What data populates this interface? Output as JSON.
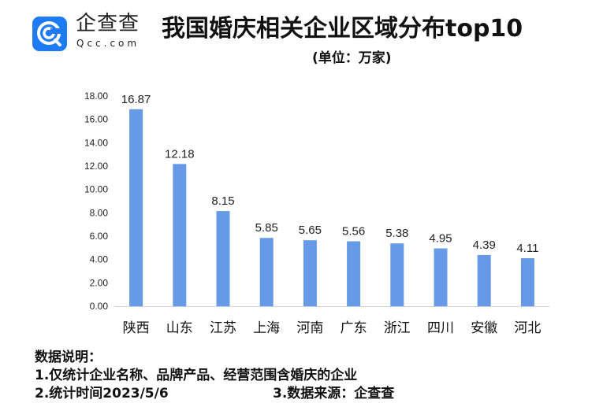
{
  "logo": {
    "cn": "企查查",
    "en": "Qcc.com",
    "color": "#1e7bf5"
  },
  "title": "我国婚庆相关企业区域分布top10",
  "unit": "(单位：万家)",
  "notes": {
    "heading": "数据说明：",
    "line1": "1.仅统计企业名称、品牌产品、经营范围含婚庆的企业",
    "line2": "2.统计时间2023/5/6",
    "line3": "3.数据来源：企查查"
  },
  "chart_data": {
    "type": "bar",
    "categories": [
      "陕西",
      "山东",
      "江苏",
      "上海",
      "河南",
      "广东",
      "浙江",
      "四川",
      "安徽",
      "河北"
    ],
    "values": [
      16.87,
      12.18,
      8.15,
      5.85,
      5.65,
      5.56,
      5.38,
      4.95,
      4.39,
      4.11
    ],
    "value_labels": [
      "16.87",
      "12.18",
      "8.15",
      "5.85",
      "5.65",
      "5.56",
      "5.38",
      "4.95",
      "4.39",
      "4.11"
    ],
    "ylim": [
      0,
      18
    ],
    "yticks": [
      "0.00",
      "2.00",
      "4.00",
      "6.00",
      "8.00",
      "10.00",
      "12.00",
      "14.00",
      "16.00",
      "18.00"
    ],
    "grid": false,
    "bar_color": "#6699e6"
  }
}
